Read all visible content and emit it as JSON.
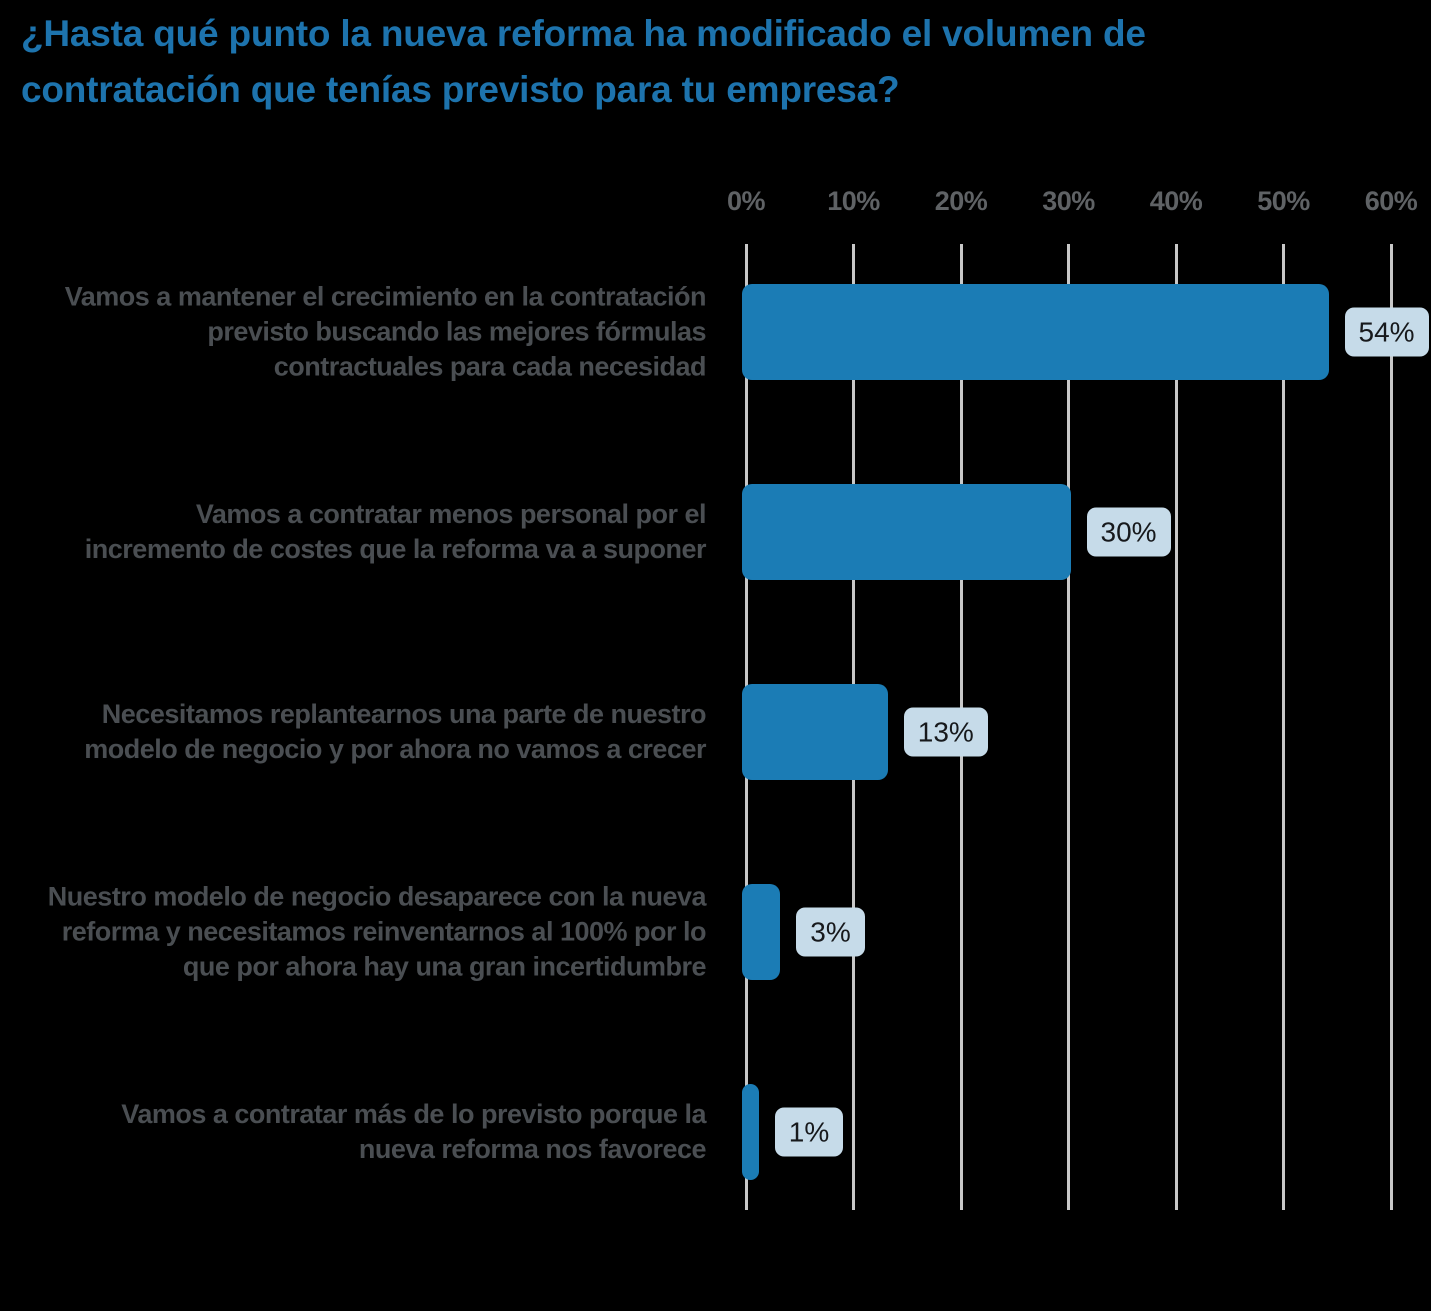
{
  "colors": {
    "background": "#000000",
    "title_text": "#1d73ad",
    "category_text": "#4a4e52",
    "tick_text": "#5f6265",
    "gridline": "#c8c8c8",
    "bar_fill": "#1b7cb5",
    "chip_bg": "#c6dbe9",
    "chip_text": "#17191c"
  },
  "chart_data": {
    "type": "bar",
    "orientation": "horizontal",
    "title": "¿Hasta qué punto la nueva reforma ha modificado el volumen de contratación que tenías previsto para tu empresa?",
    "categories": [
      "Vamos a mantener el crecimiento en la contratación\nprevisto buscando las mejores fórmulas\ncontractuales para cada necesidad",
      "Vamos a contratar menos personal por el\nincremento de costes que la reforma va a suponer",
      "Necesitamos replantearnos una parte de nuestro\nmodelo de negocio y por ahora no vamos a crecer",
      "Nuestro modelo de negocio desaparece con la nueva\nreforma y necesitamos reinventarnos al 100% por lo\nque por ahora hay una gran incertidumbre",
      "Vamos a contratar más de lo previsto porque la\nnueva reforma nos favorece"
    ],
    "values": [
      54,
      30,
      13,
      3,
      1
    ],
    "value_labels": [
      "54%",
      "30%",
      "13%",
      "3%",
      "1%"
    ],
    "x_tick_labels": [
      "0%",
      "10%",
      "20%",
      "30%",
      "40%",
      "50%",
      "60%"
    ],
    "x_tick_values": [
      0,
      10,
      20,
      30,
      40,
      50,
      60
    ],
    "xlim": [
      0,
      60
    ],
    "grid": "vertical",
    "legend": "none"
  }
}
